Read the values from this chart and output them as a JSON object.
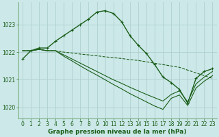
{
  "title": "Graphe pression niveau de la mer (hPa)",
  "bg_color": "#cce8e8",
  "grid_color": "#b0d0d0",
  "line_color": "#1a5e1a",
  "xlim": [
    -0.5,
    23.5
  ],
  "ylim": [
    1019.6,
    1023.8
  ],
  "yticks": [
    1020,
    1021,
    1022,
    1023
  ],
  "xticks": [
    0,
    1,
    2,
    3,
    4,
    5,
    6,
    7,
    8,
    9,
    10,
    11,
    12,
    13,
    14,
    15,
    16,
    17,
    18,
    19,
    20,
    21,
    22,
    23
  ],
  "series": [
    {
      "x": [
        0,
        1,
        2,
        3,
        4,
        5,
        6,
        7,
        8,
        9,
        10,
        11,
        12,
        13,
        14,
        15,
        16,
        17,
        18,
        19,
        20,
        21,
        22,
        23
      ],
      "y": [
        1021.75,
        1022.05,
        1022.15,
        1022.15,
        1022.4,
        1022.6,
        1022.8,
        1023.0,
        1023.2,
        1023.45,
        1023.5,
        1023.4,
        1023.1,
        1022.6,
        1022.25,
        1021.95,
        1021.55,
        1021.1,
        1020.9,
        1020.65,
        1020.15,
        1021.05,
        1021.3,
        1021.4
      ],
      "style": "-",
      "marker": "+",
      "lw": 1.0
    },
    {
      "x": [
        0,
        1,
        2,
        3,
        4,
        5,
        6,
        7,
        8,
        9,
        10,
        11,
        12,
        13,
        14,
        15,
        16,
        17,
        18,
        19,
        20,
        21,
        22,
        23
      ],
      "y": [
        1022.05,
        1022.05,
        1022.1,
        1022.05,
        1022.05,
        1022.0,
        1021.97,
        1021.93,
        1021.9,
        1021.87,
        1021.83,
        1021.8,
        1021.77,
        1021.73,
        1021.7,
        1021.65,
        1021.6,
        1021.55,
        1021.5,
        1021.45,
        1021.35,
        1021.25,
        1021.15,
        1021.05
      ],
      "style": "--",
      "marker": null,
      "lw": 0.8
    },
    {
      "x": [
        0,
        1,
        2,
        3,
        4,
        5,
        6,
        7,
        8,
        9,
        10,
        11,
        12,
        13,
        14,
        15,
        16,
        17,
        18,
        19,
        20,
        21,
        22,
        23
      ],
      "y": [
        1022.05,
        1022.05,
        1022.1,
        1022.05,
        1022.05,
        1021.9,
        1021.75,
        1021.6,
        1021.45,
        1021.3,
        1021.15,
        1021.0,
        1020.87,
        1020.73,
        1020.6,
        1020.47,
        1020.35,
        1020.23,
        1020.47,
        1020.6,
        1020.2,
        1020.85,
        1021.1,
        1021.3
      ],
      "style": "-",
      "marker": null,
      "lw": 0.8
    },
    {
      "x": [
        0,
        1,
        2,
        3,
        4,
        5,
        6,
        7,
        8,
        9,
        10,
        11,
        12,
        13,
        14,
        15,
        16,
        17,
        18,
        19,
        20,
        21,
        22,
        23
      ],
      "y": [
        1022.05,
        1022.05,
        1022.1,
        1022.05,
        1022.05,
        1021.85,
        1021.68,
        1021.5,
        1021.33,
        1021.17,
        1021.0,
        1020.83,
        1020.67,
        1020.5,
        1020.35,
        1020.2,
        1020.05,
        1019.93,
        1020.33,
        1020.45,
        1020.07,
        1020.7,
        1020.95,
        1021.15
      ],
      "style": "-",
      "marker": null,
      "lw": 0.8
    }
  ],
  "tick_fontsize": 5.5,
  "title_fontsize": 6.5
}
